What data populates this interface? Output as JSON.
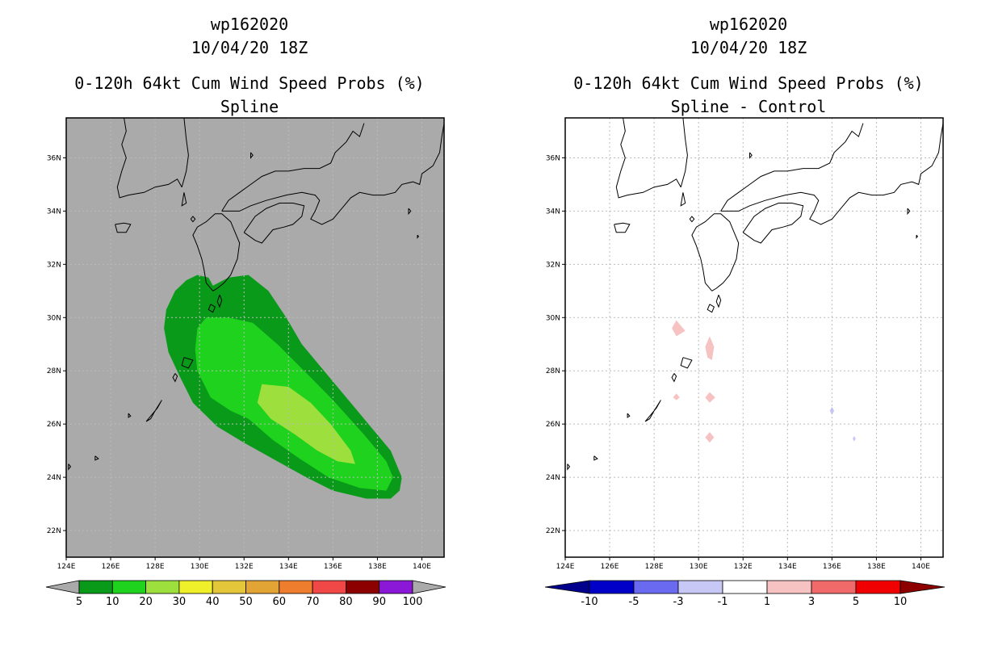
{
  "colors": {
    "land": "#aaaaaa",
    "coast": "#000000",
    "grid": "#bbbbbb",
    "green_dark": "#0a9a1a",
    "green_mid": "#1ed21e",
    "green_light": "#9ddf3c",
    "pink_light": "#f7c2c2",
    "blue_light": "#c8c8f6"
  },
  "chart_data": [
    {
      "type": "heatmap",
      "id": "left",
      "title_lines": [
        "wp162020",
        "10/04/20 18Z",
        "0-120h 64kt Cum Wind Speed Probs (%)",
        "Spline"
      ],
      "xlim": [
        124,
        141
      ],
      "ylim": [
        21,
        37.5
      ],
      "xticks": [
        "124E",
        "126E",
        "128E",
        "130E",
        "132E",
        "134E",
        "136E",
        "138E",
        "140E"
      ],
      "yticks": [
        "22N",
        "24N",
        "26N",
        "28N",
        "30N",
        "32N",
        "34N",
        "36N"
      ],
      "grid": true,
      "background": "land",
      "contours": [
        {
          "level": 5,
          "color": "#0a9a1a",
          "points": [
            [
              129.9,
              31.6
            ],
            [
              130.4,
              31.5
            ],
            [
              130.6,
              31.2
            ],
            [
              131.3,
              31.5
            ],
            [
              132.2,
              31.6
            ],
            [
              133.1,
              31.0
            ],
            [
              133.9,
              30.0
            ],
            [
              134.6,
              29.0
            ],
            [
              135.6,
              28.0
            ],
            [
              136.6,
              27.0
            ],
            [
              137.6,
              26.0
            ],
            [
              138.6,
              25.0
            ],
            [
              139.1,
              24.0
            ],
            [
              139.0,
              23.5
            ],
            [
              138.6,
              23.2
            ],
            [
              137.5,
              23.2
            ],
            [
              136.0,
              23.5
            ],
            [
              134.8,
              24.0
            ],
            [
              133.5,
              24.6
            ],
            [
              132.0,
              25.3
            ],
            [
              130.8,
              25.9
            ],
            [
              129.7,
              26.8
            ],
            [
              129.1,
              27.8
            ],
            [
              128.6,
              28.7
            ],
            [
              128.4,
              29.6
            ],
            [
              128.5,
              30.3
            ],
            [
              128.9,
              31.0
            ],
            [
              129.4,
              31.4
            ],
            [
              129.9,
              31.6
            ]
          ]
        },
        {
          "level": 10,
          "color": "#1ed21e",
          "points": [
            [
              130.3,
              30.0
            ],
            [
              131.3,
              30.0
            ],
            [
              132.4,
              29.8
            ],
            [
              133.5,
              29.0
            ],
            [
              134.7,
              28.0
            ],
            [
              136.0,
              26.9
            ],
            [
              137.4,
              25.6
            ],
            [
              138.4,
              24.6
            ],
            [
              138.7,
              24.0
            ],
            [
              138.4,
              23.5
            ],
            [
              137.2,
              23.6
            ],
            [
              135.8,
              24.0
            ],
            [
              134.5,
              24.7
            ],
            [
              133.3,
              25.4
            ],
            [
              132.2,
              26.2
            ],
            [
              131.4,
              26.5
            ],
            [
              130.5,
              27.0
            ],
            [
              129.9,
              28.0
            ],
            [
              129.8,
              28.8
            ],
            [
              129.9,
              29.6
            ],
            [
              130.3,
              30.0
            ]
          ]
        },
        {
          "level": 20,
          "color": "#9ddf3c",
          "points": [
            [
              132.8,
              27.5
            ],
            [
              134.0,
              27.4
            ],
            [
              135.0,
              26.8
            ],
            [
              135.9,
              26.0
            ],
            [
              136.8,
              25.0
            ],
            [
              137.0,
              24.5
            ],
            [
              136.2,
              24.6
            ],
            [
              135.3,
              25.0
            ],
            [
              134.3,
              25.6
            ],
            [
              133.2,
              26.2
            ],
            [
              132.6,
              26.8
            ],
            [
              132.8,
              27.5
            ]
          ]
        }
      ],
      "colorbar": {
        "levels": [
          "5",
          "10",
          "20",
          "30",
          "40",
          "50",
          "60",
          "70",
          "80",
          "90",
          "100"
        ],
        "colors": [
          "#0a9a1a",
          "#1ed21e",
          "#9ddf3c",
          "#f0f02a",
          "#e4c63a",
          "#e2a435",
          "#ee7d2e",
          "#f04747",
          "#8c0000",
          "#8a18d6"
        ],
        "under": "#aaaaaa",
        "over": "#aaaaaa"
      }
    },
    {
      "type": "heatmap",
      "id": "right",
      "title_lines": [
        "wp162020",
        "10/04/20 18Z",
        "0-120h 64kt Cum Wind Speed Probs (%)",
        "Spline - Control"
      ],
      "xlim": [
        124,
        141
      ],
      "ylim": [
        21,
        37.5
      ],
      "xticks": [
        "124E",
        "126E",
        "128E",
        "130E",
        "132E",
        "134E",
        "136E",
        "138E",
        "140E"
      ],
      "yticks": [
        "22N",
        "24N",
        "26N",
        "28N",
        "30N",
        "32N",
        "34N",
        "36N"
      ],
      "grid": true,
      "background": "white",
      "contours": [
        {
          "level": 1,
          "color": "#f7c2c2",
          "points": [
            [
              129.0,
              29.9
            ],
            [
              129.4,
              29.5
            ],
            [
              129.0,
              29.3
            ],
            [
              128.8,
              29.6
            ],
            [
              129.0,
              29.9
            ]
          ]
        },
        {
          "level": 1,
          "color": "#f7c2c2",
          "points": [
            [
              130.5,
              29.3
            ],
            [
              130.7,
              28.9
            ],
            [
              130.6,
              28.4
            ],
            [
              130.4,
              28.5
            ],
            [
              130.3,
              28.9
            ],
            [
              130.5,
              29.3
            ]
          ]
        },
        {
          "level": 1,
          "color": "#f7c2c2",
          "points": [
            [
              129.0,
              27.15
            ],
            [
              129.15,
              27.0
            ],
            [
              129.0,
              26.9
            ],
            [
              128.85,
              27.0
            ],
            [
              129.0,
              27.15
            ]
          ]
        },
        {
          "level": 1,
          "color": "#f7c2c2",
          "points": [
            [
              130.5,
              27.2
            ],
            [
              130.75,
              27.0
            ],
            [
              130.5,
              26.8
            ],
            [
              130.3,
              27.0
            ],
            [
              130.5,
              27.2
            ]
          ]
        },
        {
          "level": 1,
          "color": "#f7c2c2",
          "points": [
            [
              130.5,
              25.7
            ],
            [
              130.7,
              25.5
            ],
            [
              130.5,
              25.3
            ],
            [
              130.3,
              25.5
            ],
            [
              130.5,
              25.7
            ]
          ]
        },
        {
          "level": -1,
          "color": "#c8c8f6",
          "points": [
            [
              136.0,
              26.65
            ],
            [
              136.1,
              26.5
            ],
            [
              136.0,
              26.35
            ],
            [
              135.9,
              26.5
            ],
            [
              136.0,
              26.65
            ]
          ]
        },
        {
          "level": -1,
          "color": "#c8c8f6",
          "points": [
            [
              137.0,
              25.55
            ],
            [
              137.07,
              25.45
            ],
            [
              137.0,
              25.35
            ],
            [
              136.93,
              25.45
            ],
            [
              137.0,
              25.55
            ]
          ]
        }
      ],
      "colorbar": {
        "levels": [
          "-10",
          "-5",
          "-3",
          "-1",
          "1",
          "3",
          "5",
          "10"
        ],
        "colors": [
          "#0000c8",
          "#6a6af0",
          "#c8c8f6",
          "#ffffff",
          "#f7c2c2",
          "#f06a6a",
          "#f00000"
        ],
        "under": "#00008c",
        "over": "#8c0000"
      }
    }
  ],
  "coastlines": [
    [
      [
        130.6,
        31.0
      ],
      [
        130.3,
        31.3
      ],
      [
        130.2,
        31.8
      ],
      [
        130.1,
        32.2
      ],
      [
        129.9,
        32.7
      ],
      [
        129.7,
        33.1
      ],
      [
        129.9,
        33.4
      ],
      [
        130.3,
        33.6
      ],
      [
        130.7,
        33.9
      ],
      [
        131.0,
        33.9
      ],
      [
        131.4,
        33.6
      ],
      [
        131.6,
        33.2
      ],
      [
        131.8,
        32.8
      ],
      [
        131.7,
        32.2
      ],
      [
        131.4,
        31.6
      ],
      [
        131.1,
        31.3
      ],
      [
        130.8,
        31.1
      ],
      [
        130.6,
        31.0
      ]
    ],
    [
      [
        132.0,
        33.2
      ],
      [
        132.5,
        33.8
      ],
      [
        133.0,
        34.1
      ],
      [
        133.6,
        34.3
      ],
      [
        134.2,
        34.3
      ],
      [
        134.7,
        34.2
      ],
      [
        134.6,
        33.8
      ],
      [
        134.2,
        33.5
      ],
      [
        133.8,
        33.4
      ],
      [
        133.3,
        33.3
      ],
      [
        132.8,
        32.8
      ],
      [
        132.5,
        32.9
      ],
      [
        132.0,
        33.2
      ]
    ],
    [
      [
        131.0,
        34.0
      ],
      [
        131.8,
        34.0
      ],
      [
        132.3,
        34.2
      ],
      [
        133.0,
        34.4
      ],
      [
        133.9,
        34.6
      ],
      [
        134.6,
        34.7
      ],
      [
        135.2,
        34.6
      ],
      [
        135.4,
        34.4
      ],
      [
        135.2,
        34.0
      ],
      [
        135.0,
        33.7
      ],
      [
        135.5,
        33.5
      ],
      [
        136.0,
        33.7
      ],
      [
        136.4,
        34.1
      ],
      [
        136.8,
        34.5
      ],
      [
        137.2,
        34.7
      ],
      [
        137.8,
        34.6
      ],
      [
        138.3,
        34.6
      ],
      [
        138.8,
        34.7
      ],
      [
        139.1,
        35.0
      ],
      [
        139.6,
        35.1
      ],
      [
        139.9,
        35.0
      ],
      [
        140.0,
        35.4
      ],
      [
        140.5,
        35.7
      ],
      [
        140.8,
        36.2
      ],
      [
        140.9,
        36.8
      ],
      [
        141.0,
        37.3
      ]
    ],
    [
      [
        131.0,
        34.0
      ],
      [
        131.3,
        34.4
      ],
      [
        131.8,
        34.7
      ],
      [
        132.3,
        35.0
      ],
      [
        132.8,
        35.3
      ],
      [
        133.4,
        35.5
      ],
      [
        134.0,
        35.5
      ],
      [
        134.7,
        35.6
      ],
      [
        135.4,
        35.6
      ],
      [
        135.9,
        35.8
      ],
      [
        136.1,
        36.2
      ],
      [
        136.6,
        36.6
      ],
      [
        136.9,
        37.0
      ],
      [
        137.2,
        36.8
      ],
      [
        137.4,
        37.3
      ]
    ],
    [
      [
        129.2,
        34.9
      ],
      [
        129.0,
        35.2
      ],
      [
        128.6,
        35.0
      ],
      [
        128.0,
        34.9
      ],
      [
        127.5,
        34.7
      ],
      [
        126.8,
        34.6
      ],
      [
        126.4,
        34.5
      ],
      [
        126.3,
        34.9
      ],
      [
        126.5,
        35.5
      ],
      [
        126.7,
        36.0
      ],
      [
        126.5,
        36.5
      ],
      [
        126.7,
        37.0
      ],
      [
        126.6,
        37.5
      ]
    ],
    [
      [
        129.2,
        34.9
      ],
      [
        129.4,
        35.5
      ],
      [
        129.5,
        36.1
      ],
      [
        129.4,
        36.7
      ],
      [
        129.3,
        37.5
      ]
    ],
    [
      [
        126.2,
        33.5
      ],
      [
        126.6,
        33.55
      ],
      [
        126.9,
        33.5
      ],
      [
        126.7,
        33.2
      ],
      [
        126.3,
        33.2
      ],
      [
        126.2,
        33.5
      ]
    ],
    [
      [
        129.3,
        34.7
      ],
      [
        129.4,
        34.3
      ],
      [
        129.2,
        34.2
      ],
      [
        129.3,
        34.7
      ]
    ],
    [
      [
        129.6,
        33.7
      ],
      [
        129.7,
        33.8
      ],
      [
        129.8,
        33.7
      ],
      [
        129.7,
        33.6
      ],
      [
        129.6,
        33.7
      ]
    ],
    [
      [
        130.9,
        30.85
      ],
      [
        131.0,
        30.65
      ],
      [
        130.9,
        30.4
      ],
      [
        130.8,
        30.6
      ],
      [
        130.9,
        30.85
      ]
    ],
    [
      [
        130.5,
        30.5
      ],
      [
        130.7,
        30.4
      ],
      [
        130.6,
        30.2
      ],
      [
        130.4,
        30.3
      ],
      [
        130.5,
        30.5
      ]
    ],
    [
      [
        129.3,
        28.5
      ],
      [
        129.7,
        28.4
      ],
      [
        129.5,
        28.1
      ],
      [
        129.2,
        28.2
      ],
      [
        129.3,
        28.5
      ]
    ],
    [
      [
        128.9,
        27.9
      ],
      [
        129.0,
        27.8
      ],
      [
        128.9,
        27.6
      ],
      [
        128.8,
        27.75
      ],
      [
        128.9,
        27.9
      ]
    ],
    [
      [
        128.3,
        26.9
      ],
      [
        128.1,
        26.6
      ],
      [
        127.8,
        26.3
      ],
      [
        127.6,
        26.1
      ],
      [
        127.8,
        26.2
      ],
      [
        128.0,
        26.5
      ],
      [
        128.3,
        26.9
      ]
    ],
    [
      [
        125.3,
        24.8
      ],
      [
        125.45,
        24.7
      ],
      [
        125.3,
        24.65
      ],
      [
        125.3,
        24.8
      ]
    ],
    [
      [
        124.1,
        24.5
      ],
      [
        124.2,
        24.4
      ],
      [
        124.1,
        24.3
      ],
      [
        124.1,
        24.5
      ]
    ],
    [
      [
        126.8,
        26.4
      ],
      [
        126.9,
        26.3
      ],
      [
        126.8,
        26.25
      ],
      [
        126.8,
        26.4
      ]
    ],
    [
      [
        139.4,
        34.1
      ],
      [
        139.5,
        34.0
      ],
      [
        139.4,
        33.9
      ],
      [
        139.4,
        34.1
      ]
    ],
    [
      [
        139.8,
        33.1
      ],
      [
        139.85,
        33.05
      ],
      [
        139.8,
        33.0
      ],
      [
        139.8,
        33.1
      ]
    ],
    [
      [
        132.3,
        36.2
      ],
      [
        132.4,
        36.1
      ],
      [
        132.3,
        36.0
      ],
      [
        132.3,
        36.2
      ]
    ]
  ]
}
